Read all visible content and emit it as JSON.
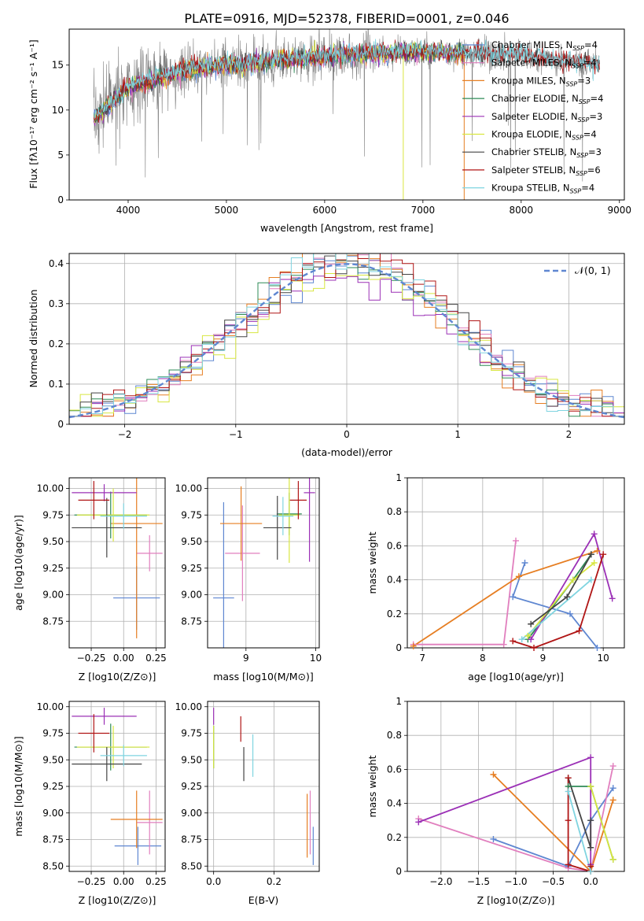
{
  "figure_title": "PLATE=0916, MJD=52378, FIBERID=0001, z=0.046",
  "colors": {
    "data": "#808080",
    "chabrier_miles": "#5f87d1",
    "salpeter_miles": "#e17fbe",
    "kroupa_miles": "#e67e22",
    "chabrier_elodie": "#2e8b57",
    "salpeter_elodie": "#9b30b6",
    "kroupa_elodie": "#d8e640",
    "chabrier_stelib": "#444444",
    "salpeter_stelib": "#b01515",
    "kroupa_stelib": "#7fd4e0",
    "gauss": "#5f87d1",
    "grid": "#b0b0b0"
  },
  "chart_data": [
    {
      "id": "spectrum",
      "type": "line",
      "title": "PLATE=0916, MJD=52378, FIBERID=0001, z=0.046",
      "xlabel": "wavelength [Angstrom, rest frame]",
      "ylabel": "Flux [f_λ 10^-17 erg cm^-2 s^-1 A^-1]",
      "xlim": [
        3400,
        9050
      ],
      "ylim": [
        0,
        19
      ],
      "xticks": [
        4000,
        5000,
        6000,
        7000,
        8000,
        9000
      ],
      "yticks": [
        0,
        5,
        10,
        15
      ],
      "grid": false,
      "legend_position": "right",
      "legend": [
        {
          "text": "Chabrier MILES, N_SSP=4",
          "key": "chabrier_miles"
        },
        {
          "text": "Salpeter MILES, N_SSP=4",
          "key": "salpeter_miles"
        },
        {
          "text": "Kroupa MILES, N_SSP=3",
          "key": "kroupa_miles"
        },
        {
          "text": "Chabrier ELODIE, N_SSP=4",
          "key": "chabrier_elodie"
        },
        {
          "text": "Salpeter ELODIE, N_SSP=3",
          "key": "salpeter_elodie"
        },
        {
          "text": "Kroupa ELODIE, N_SSP=4",
          "key": "kroupa_elodie"
        },
        {
          "text": "Chabrier STELIB, N_SSP=3",
          "key": "chabrier_stelib"
        },
        {
          "text": "Salpeter STELIB, N_SSP=6",
          "key": "salpeter_stelib"
        },
        {
          "text": "Kroupa STELIB, N_SSP=4",
          "key": "kroupa_stelib"
        }
      ],
      "continuum": [
        [
          3650,
          9.0
        ],
        [
          3800,
          10.5
        ],
        [
          4000,
          12.5
        ],
        [
          4300,
          13.5
        ],
        [
          4600,
          14.5
        ],
        [
          5000,
          15.0
        ],
        [
          5500,
          15.5
        ],
        [
          6000,
          16.0
        ],
        [
          6500,
          16.3
        ],
        [
          7000,
          16.5
        ],
        [
          7500,
          16.2
        ],
        [
          8000,
          16.0
        ],
        [
          8500,
          15.3
        ],
        [
          8800,
          15.0
        ]
      ],
      "model_range": [
        3650,
        7420
      ],
      "stelib_range": [
        7420,
        8800
      ]
    },
    {
      "id": "residuals",
      "type": "histogram",
      "xlabel": "(data-model)/error",
      "ylabel": "Normed distribution",
      "xlim": [
        -2.5,
        2.5
      ],
      "ylim": [
        0,
        0.425
      ],
      "xticks": [
        -2,
        -1,
        0,
        1,
        2
      ],
      "yticks": [
        0.0,
        0.1,
        0.2,
        0.3,
        0.4
      ],
      "grid": true,
      "legend": [
        {
          "text": "N(0,1)",
          "key": "gauss"
        }
      ],
      "legend_position": "top-right",
      "bin_width": 0.1
    },
    {
      "id": "age_vs_Z",
      "type": "errorbar",
      "xlabel": "Z [log10(Z/Z⊙)]",
      "ylabel": "age [log10(age/yr)]",
      "xlim": [
        -0.42,
        0.32
      ],
      "ylim": [
        8.5,
        10.1
      ],
      "xticks": [
        -0.25,
        0.0,
        0.25
      ],
      "xtick_labels": [
        "−0.25",
        "0.00",
        "0.25"
      ],
      "yticks": [
        8.75,
        9.0,
        9.25,
        9.5,
        9.75,
        10.0
      ],
      "ytick_labels": [
        "8.75",
        "9.00",
        "9.25",
        "9.50",
        "9.75",
        "10.00"
      ],
      "grid": true,
      "points": [
        {
          "key": "chabrier_miles",
          "x": 0.1,
          "xerr": 0.18,
          "y": 8.97,
          "yerr": 0.3
        },
        {
          "key": "salpeter_miles",
          "x": 0.2,
          "xerr": 0.1,
          "y": 9.39,
          "yerr": 0.17
        },
        {
          "key": "kroupa_miles",
          "x": 0.1,
          "xerr": 0.2,
          "y": 9.67,
          "yerr": 1.08
        },
        {
          "key": "chabrier_elodie",
          "x": -0.1,
          "xerr": 0.28,
          "y": 9.75,
          "yerr": 0.22
        },
        {
          "key": "salpeter_elodie",
          "x": -0.15,
          "xerr": 0.25,
          "y": 9.96,
          "yerr": 0.08
        },
        {
          "key": "kroupa_elodie",
          "x": -0.08,
          "xerr": 0.28,
          "y": 9.75,
          "yerr": 0.25
        },
        {
          "key": "chabrier_stelib",
          "x": -0.13,
          "xerr": 0.27,
          "y": 9.63,
          "yerr": 0.28
        },
        {
          "key": "salpeter_stelib",
          "x": -0.23,
          "xerr": 0.12,
          "y": 9.89,
          "yerr": 0.18
        },
        {
          "key": "kroupa_stelib",
          "x": 0.0,
          "xerr": 0.18,
          "y": 9.74,
          "yerr": 0.12
        }
      ]
    },
    {
      "id": "age_vs_mass",
      "type": "errorbar",
      "xlabel": "mass [log10(M/M⊙)]",
      "ylabel": "",
      "xlim": [
        8.45,
        10.05
      ],
      "ylim": [
        8.5,
        10.1
      ],
      "xticks": [
        9,
        10
      ],
      "yticks": [
        8.75,
        9.0,
        9.25,
        9.5,
        9.75,
        10.0
      ],
      "ytick_labels": [
        "8.75",
        "9.00",
        "9.25",
        "9.50",
        "9.75",
        "10.00"
      ],
      "grid": true,
      "points": [
        {
          "key": "chabrier_miles",
          "x": 8.68,
          "xerr": 0.15,
          "y": 8.97,
          "yerr": 0.9
        },
        {
          "key": "salpeter_miles",
          "x": 8.95,
          "xerr": 0.25,
          "y": 9.39,
          "yerr": 0.45
        },
        {
          "key": "kroupa_miles",
          "x": 8.93,
          "xerr": 0.3,
          "y": 9.67,
          "yerr": 0.35
        },
        {
          "key": "chabrier_elodie",
          "x": 9.62,
          "xerr": 0.18,
          "y": 9.76,
          "yerr": 0.2
        },
        {
          "key": "salpeter_elodie",
          "x": 9.91,
          "xerr": 0.08,
          "y": 9.96,
          "yerr": 0.65
        },
        {
          "key": "kroupa_elodie",
          "x": 9.62,
          "xerr": 0.15,
          "y": 9.75,
          "yerr": 0.45
        },
        {
          "key": "chabrier_stelib",
          "x": 9.45,
          "xerr": 0.2,
          "y": 9.63,
          "yerr": 0.3
        },
        {
          "key": "salpeter_stelib",
          "x": 9.75,
          "xerr": 0.12,
          "y": 9.89,
          "yerr": 0.18
        },
        {
          "key": "kroupa_stelib",
          "x": 9.53,
          "xerr": 0.15,
          "y": 9.74,
          "yerr": 0.18
        }
      ]
    },
    {
      "id": "mass_weight_vs_age",
      "type": "line",
      "xlabel": "age [log10(age/yr)]",
      "ylabel": "mass weight",
      "xlim": [
        6.75,
        10.35
      ],
      "ylim": [
        0,
        1.0
      ],
      "xticks": [
        7,
        8,
        9,
        10
      ],
      "yticks": [
        0.0,
        0.2,
        0.4,
        0.6,
        0.8,
        1.0
      ],
      "grid": true,
      "series": [
        {
          "key": "chabrier_miles",
          "points": [
            [
              8.7,
              0.5
            ],
            [
              8.5,
              0.3
            ],
            [
              9.45,
              0.2
            ],
            [
              9.9,
              0.0
            ]
          ]
        },
        {
          "key": "salpeter_miles",
          "points": [
            [
              8.55,
              0.63
            ],
            [
              8.35,
              0.02
            ],
            [
              6.85,
              0.02
            ]
          ]
        },
        {
          "key": "kroupa_miles",
          "points": [
            [
              9.9,
              0.57
            ],
            [
              8.6,
              0.42
            ],
            [
              6.85,
              0.01
            ]
          ]
        },
        {
          "key": "chabrier_elodie",
          "points": [
            [
              8.75,
              0.05
            ],
            [
              9.5,
              0.4
            ],
            [
              9.8,
              0.55
            ]
          ]
        },
        {
          "key": "salpeter_elodie",
          "points": [
            [
              8.8,
              0.05
            ],
            [
              9.85,
              0.67
            ],
            [
              10.15,
              0.29
            ]
          ]
        },
        {
          "key": "kroupa_elodie",
          "points": [
            [
              8.75,
              0.07
            ],
            [
              9.5,
              0.4
            ],
            [
              9.85,
              0.5
            ]
          ]
        },
        {
          "key": "chabrier_stelib",
          "points": [
            [
              8.8,
              0.14
            ],
            [
              9.4,
              0.3
            ],
            [
              9.8,
              0.55
            ]
          ]
        },
        {
          "key": "salpeter_stelib",
          "points": [
            [
              8.5,
              0.04
            ],
            [
              8.85,
              0.0
            ],
            [
              9.6,
              0.1
            ],
            [
              10.0,
              0.55
            ]
          ]
        },
        {
          "key": "kroupa_stelib",
          "points": [
            [
              8.65,
              0.05
            ],
            [
              9.8,
              0.4
            ]
          ]
        }
      ]
    },
    {
      "id": "mass_vs_Z",
      "type": "errorbar",
      "xlabel": "Z [log10(Z/Z⊙)]",
      "ylabel": "mass [log10(M/M⊙)]",
      "xlim": [
        -0.42,
        0.32
      ],
      "ylim": [
        8.45,
        10.05
      ],
      "xticks": [
        -0.25,
        0.0,
        0.25
      ],
      "xtick_labels": [
        "−0.25",
        "0.00",
        "0.25"
      ],
      "yticks": [
        8.5,
        8.75,
        9.0,
        9.25,
        9.5,
        9.75,
        10.0
      ],
      "ytick_labels": [
        "8.50",
        "8.75",
        "9.00",
        "9.25",
        "9.50",
        "9.75",
        "10.00"
      ],
      "grid": true,
      "points": [
        {
          "key": "chabrier_miles",
          "x": 0.11,
          "xerr": 0.18,
          "y": 8.69,
          "yerr": 0.18
        },
        {
          "key": "salpeter_miles",
          "x": 0.2,
          "xerr": 0.1,
          "y": 8.91,
          "yerr": 0.3
        },
        {
          "key": "kroupa_miles",
          "x": 0.1,
          "xerr": 0.2,
          "y": 8.94,
          "yerr": 0.27
        },
        {
          "key": "chabrier_elodie",
          "x": -0.1,
          "xerr": 0.28,
          "y": 9.62,
          "yerr": 0.22
        },
        {
          "key": "salpeter_elodie",
          "x": -0.15,
          "xerr": 0.25,
          "y": 9.91,
          "yerr": 0.08
        },
        {
          "key": "kroupa_elodie",
          "x": -0.08,
          "xerr": 0.28,
          "y": 9.62,
          "yerr": 0.2
        },
        {
          "key": "chabrier_stelib",
          "x": -0.13,
          "xerr": 0.27,
          "y": 9.46,
          "yerr": 0.16
        },
        {
          "key": "salpeter_stelib",
          "x": -0.23,
          "xerr": 0.12,
          "y": 9.75,
          "yerr": 0.18
        },
        {
          "key": "kroupa_stelib",
          "x": 0.0,
          "xerr": 0.18,
          "y": 9.54,
          "yerr": 0.1
        }
      ]
    },
    {
      "id": "mass_vs_ebv",
      "type": "errorbar",
      "xlabel": "E(B-V)",
      "ylabel": "",
      "xlim": [
        -0.02,
        0.35
      ],
      "ylim": [
        8.45,
        10.05
      ],
      "xticks": [
        0.0,
        0.2
      ],
      "xtick_labels": [
        "0.0",
        "0.2"
      ],
      "yticks": [
        8.5,
        8.75,
        9.0,
        9.25,
        9.5,
        9.75,
        10.0
      ],
      "ytick_labels": [
        "8.50",
        "8.75",
        "9.00",
        "9.25",
        "9.50",
        "9.75",
        "10.00"
      ],
      "grid": true,
      "points": [
        {
          "key": "chabrier_miles",
          "x": 0.33,
          "xerr": 0,
          "y": 8.69,
          "yerr": 0.18
        },
        {
          "key": "salpeter_miles",
          "x": 0.32,
          "xerr": 0,
          "y": 8.91,
          "yerr": 0.3
        },
        {
          "key": "kroupa_miles",
          "x": 0.31,
          "xerr": 0,
          "y": 8.88,
          "yerr": 0.3
        },
        {
          "key": "chabrier_elodie",
          "x": 0.0,
          "xerr": 0,
          "y": 9.62,
          "yerr": 0.2
        },
        {
          "key": "salpeter_elodie",
          "x": 0.0,
          "xerr": 0,
          "y": 9.91,
          "yerr": 0.08
        },
        {
          "key": "kroupa_elodie",
          "x": 0.0,
          "xerr": 0,
          "y": 9.62,
          "yerr": 0.2
        },
        {
          "key": "chabrier_stelib",
          "x": 0.1,
          "xerr": 0,
          "y": 9.46,
          "yerr": 0.16
        },
        {
          "key": "salpeter_stelib",
          "x": 0.09,
          "xerr": 0,
          "y": 9.79,
          "yerr": 0.12
        },
        {
          "key": "kroupa_stelib",
          "x": 0.13,
          "xerr": 0,
          "y": 9.54,
          "yerr": 0.2
        }
      ]
    },
    {
      "id": "mass_weight_vs_Z",
      "type": "line",
      "xlabel": "Z [log10(Z/Z⊙)]",
      "ylabel": "mass weight",
      "xlim": [
        -2.45,
        0.45
      ],
      "ylim": [
        0,
        1.0
      ],
      "xticks": [
        -2.0,
        -1.5,
        -1.0,
        -0.5,
        0.0
      ],
      "xtick_labels": [
        "−2.0",
        "−1.5",
        "−1.0",
        "−0.5",
        "0.0"
      ],
      "yticks": [
        0.0,
        0.2,
        0.4,
        0.6,
        0.8,
        1.0
      ],
      "grid": true,
      "series": [
        {
          "key": "chabrier_miles",
          "points": [
            [
              -1.3,
              0.19
            ],
            [
              -0.3,
              0.03
            ],
            [
              0.0,
              0.3
            ],
            [
              0.3,
              0.49
            ]
          ]
        },
        {
          "key": "salpeter_miles",
          "points": [
            [
              -2.3,
              0.31
            ],
            [
              -0.3,
              0.02
            ],
            [
              0.0,
              0.0
            ],
            [
              0.3,
              0.62
            ]
          ]
        },
        {
          "key": "kroupa_miles",
          "points": [
            [
              -1.3,
              0.57
            ],
            [
              0.0,
              0.0
            ],
            [
              0.3,
              0.42
            ]
          ]
        },
        {
          "key": "chabrier_elodie",
          "points": [
            [
              -0.3,
              0.5
            ],
            [
              0.0,
              0.5
            ],
            [
              0.3,
              0.07
            ]
          ]
        },
        {
          "key": "salpeter_elodie",
          "points": [
            [
              -2.3,
              0.29
            ],
            [
              0.0,
              0.67
            ],
            [
              0.0,
              0.04
            ]
          ]
        },
        {
          "key": "kroupa_elodie",
          "points": [
            [
              0.0,
              0.5
            ],
            [
              0.3,
              0.07
            ]
          ]
        },
        {
          "key": "chabrier_stelib",
          "points": [
            [
              -0.3,
              0.55
            ],
            [
              0.0,
              0.14
            ],
            [
              0.0,
              0.3
            ]
          ]
        },
        {
          "key": "salpeter_stelib",
          "points": [
            [
              -0.3,
              0.55
            ],
            [
              -0.3,
              0.3
            ],
            [
              -0.3,
              0.04
            ],
            [
              0.0,
              0.0
            ],
            [
              0.0,
              0.03
            ]
          ]
        },
        {
          "key": "kroupa_stelib",
          "points": [
            [
              -0.3,
              0.47
            ],
            [
              0.0,
              0.0
            ]
          ]
        }
      ]
    }
  ]
}
